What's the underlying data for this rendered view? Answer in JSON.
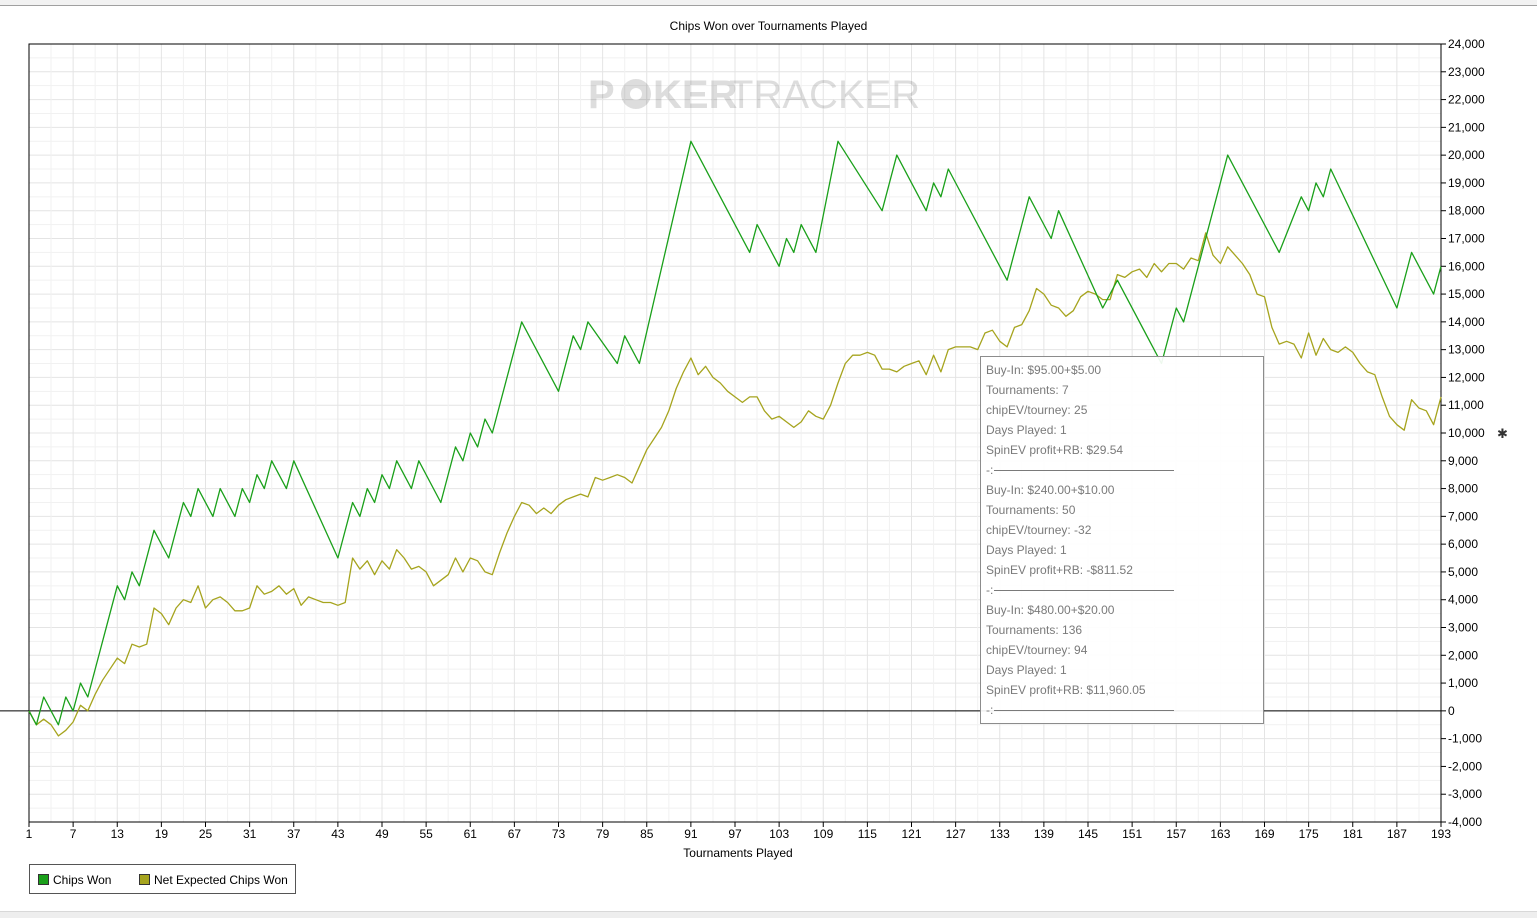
{
  "chart_data": {
    "type": "line",
    "title": "Chips Won over Tournaments Played",
    "xlabel": "Tournaments Played",
    "ylabel": "",
    "xlim": [
      1,
      193
    ],
    "ylim": [
      -4000,
      24000
    ],
    "y_axis_side": "right",
    "grid": true,
    "legend_position": "bottom-left",
    "x_ticks": [
      "1",
      "7",
      "13",
      "19",
      "25",
      "31",
      "37",
      "43",
      "49",
      "55",
      "61",
      "67",
      "73",
      "79",
      "85",
      "91",
      "97",
      "103",
      "109",
      "115",
      "121",
      "127",
      "133",
      "139",
      "145",
      "151",
      "157",
      "163",
      "169",
      "175",
      "181",
      "187",
      "193"
    ],
    "y_ticks": [
      "24,000",
      "23,000",
      "22,000",
      "21,000",
      "20,000",
      "19,000",
      "18,000",
      "17,000",
      "16,000",
      "15,000",
      "14,000",
      "13,000",
      "12,000",
      "11,000",
      "10,000",
      "9,000",
      "8,000",
      "7,000",
      "6,000",
      "5,000",
      "4,000",
      "3,000",
      "2,000",
      "1,000",
      "0",
      "-1,000",
      "-2,000",
      "-3,000",
      "-4,000"
    ],
    "series": [
      {
        "name": "Chips Won",
        "color": "#1aa01a",
        "points": [
          [
            1,
            0
          ],
          [
            2,
            -500
          ],
          [
            3,
            500
          ],
          [
            5,
            -500
          ],
          [
            6,
            500
          ],
          [
            7,
            0
          ],
          [
            8,
            1000
          ],
          [
            9,
            500
          ],
          [
            13,
            4500
          ],
          [
            14,
            4000
          ],
          [
            15,
            5000
          ],
          [
            16,
            4500
          ],
          [
            18,
            6500
          ],
          [
            20,
            5500
          ],
          [
            22,
            7500
          ],
          [
            23,
            7000
          ],
          [
            24,
            8000
          ],
          [
            26,
            7000
          ],
          [
            27,
            8000
          ],
          [
            29,
            7000
          ],
          [
            30,
            8000
          ],
          [
            31,
            7500
          ],
          [
            32,
            8500
          ],
          [
            33,
            8000
          ],
          [
            34,
            9000
          ],
          [
            36,
            8000
          ],
          [
            37,
            9000
          ],
          [
            43,
            5500
          ],
          [
            45,
            7500
          ],
          [
            46,
            7000
          ],
          [
            47,
            8000
          ],
          [
            48,
            7500
          ],
          [
            49,
            8500
          ],
          [
            50,
            8000
          ],
          [
            51,
            9000
          ],
          [
            53,
            8000
          ],
          [
            54,
            9000
          ],
          [
            57,
            7500
          ],
          [
            59,
            9500
          ],
          [
            60,
            9000
          ],
          [
            61,
            10000
          ],
          [
            62,
            9500
          ],
          [
            63,
            10500
          ],
          [
            64,
            10000
          ],
          [
            68,
            14000
          ],
          [
            73,
            11500
          ],
          [
            75,
            13500
          ],
          [
            76,
            13000
          ],
          [
            77,
            14000
          ],
          [
            81,
            12500
          ],
          [
            82,
            13500
          ],
          [
            84,
            12500
          ],
          [
            91,
            20500
          ],
          [
            99,
            16500
          ],
          [
            100,
            17500
          ],
          [
            103,
            16000
          ],
          [
            104,
            17000
          ],
          [
            105,
            16500
          ],
          [
            106,
            17500
          ],
          [
            108,
            16500
          ],
          [
            111,
            20500
          ],
          [
            117,
            18000
          ],
          [
            119,
            20000
          ],
          [
            123,
            18000
          ],
          [
            124,
            19000
          ],
          [
            125,
            18500
          ],
          [
            126,
            19500
          ],
          [
            134,
            15500
          ],
          [
            137,
            18500
          ],
          [
            140,
            17000
          ],
          [
            141,
            18000
          ],
          [
            147,
            14500
          ],
          [
            149,
            15500
          ],
          [
            155,
            12500
          ],
          [
            157,
            14500
          ],
          [
            158,
            14000
          ],
          [
            164,
            20000
          ],
          [
            171,
            16500
          ],
          [
            174,
            18500
          ],
          [
            175,
            18000
          ],
          [
            176,
            19000
          ],
          [
            177,
            18500
          ],
          [
            178,
            19500
          ],
          [
            187,
            14500
          ],
          [
            189,
            16500
          ],
          [
            192,
            15000
          ],
          [
            193,
            16000
          ]
        ]
      },
      {
        "name": "Net Expected Chips Won",
        "color": "#a6a41e",
        "points": [
          [
            1,
            0
          ],
          [
            2,
            -500
          ],
          [
            3,
            -300
          ],
          [
            4,
            -500
          ],
          [
            5,
            -900
          ],
          [
            6,
            -700
          ],
          [
            7,
            -400
          ],
          [
            8,
            200
          ],
          [
            9,
            0
          ],
          [
            10,
            600
          ],
          [
            11,
            1100
          ],
          [
            12,
            1500
          ],
          [
            13,
            1900
          ],
          [
            14,
            1700
          ],
          [
            15,
            2400
          ],
          [
            16,
            2300
          ],
          [
            17,
            2400
          ],
          [
            18,
            3700
          ],
          [
            19,
            3500
          ],
          [
            20,
            3100
          ],
          [
            21,
            3700
          ],
          [
            22,
            4000
          ],
          [
            23,
            3900
          ],
          [
            24,
            4500
          ],
          [
            25,
            3700
          ],
          [
            26,
            4000
          ],
          [
            27,
            4100
          ],
          [
            28,
            3900
          ],
          [
            29,
            3600
          ],
          [
            30,
            3600
          ],
          [
            31,
            3700
          ],
          [
            32,
            4500
          ],
          [
            33,
            4200
          ],
          [
            34,
            4300
          ],
          [
            35,
            4500
          ],
          [
            36,
            4200
          ],
          [
            37,
            4400
          ],
          [
            38,
            3800
          ],
          [
            39,
            4100
          ],
          [
            40,
            4000
          ],
          [
            41,
            3900
          ],
          [
            42,
            3900
          ],
          [
            43,
            3800
          ],
          [
            44,
            3900
          ],
          [
            45,
            5500
          ],
          [
            46,
            5100
          ],
          [
            47,
            5400
          ],
          [
            48,
            4900
          ],
          [
            49,
            5400
          ],
          [
            50,
            5100
          ],
          [
            51,
            5800
          ],
          [
            52,
            5500
          ],
          [
            53,
            5100
          ],
          [
            54,
            5200
          ],
          [
            55,
            5000
          ],
          [
            56,
            4500
          ],
          [
            57,
            4700
          ],
          [
            58,
            4900
          ],
          [
            59,
            5500
          ],
          [
            60,
            5000
          ],
          [
            61,
            5500
          ],
          [
            62,
            5400
          ],
          [
            63,
            5000
          ],
          [
            64,
            4900
          ],
          [
            65,
            5700
          ],
          [
            66,
            6400
          ],
          [
            67,
            7000
          ],
          [
            68,
            7500
          ],
          [
            69,
            7400
          ],
          [
            70,
            7100
          ],
          [
            71,
            7300
          ],
          [
            72,
            7100
          ],
          [
            73,
            7400
          ],
          [
            74,
            7600
          ],
          [
            75,
            7700
          ],
          [
            76,
            7800
          ],
          [
            77,
            7700
          ],
          [
            78,
            8400
          ],
          [
            79,
            8300
          ],
          [
            80,
            8400
          ],
          [
            81,
            8500
          ],
          [
            82,
            8400
          ],
          [
            83,
            8200
          ],
          [
            84,
            8800
          ],
          [
            85,
            9400
          ],
          [
            86,
            9800
          ],
          [
            87,
            10200
          ],
          [
            88,
            10800
          ],
          [
            89,
            11600
          ],
          [
            90,
            12200
          ],
          [
            91,
            12700
          ],
          [
            92,
            12100
          ],
          [
            93,
            12400
          ],
          [
            94,
            12000
          ],
          [
            95,
            11800
          ],
          [
            96,
            11500
          ],
          [
            97,
            11300
          ],
          [
            98,
            11100
          ],
          [
            99,
            11300
          ],
          [
            100,
            11300
          ],
          [
            101,
            10800
          ],
          [
            102,
            10500
          ],
          [
            103,
            10600
          ],
          [
            104,
            10400
          ],
          [
            105,
            10200
          ],
          [
            106,
            10400
          ],
          [
            107,
            10800
          ],
          [
            108,
            10600
          ],
          [
            109,
            10500
          ],
          [
            110,
            11000
          ],
          [
            111,
            11800
          ],
          [
            112,
            12500
          ],
          [
            113,
            12800
          ],
          [
            114,
            12800
          ],
          [
            115,
            12900
          ],
          [
            116,
            12800
          ],
          [
            117,
            12300
          ],
          [
            118,
            12300
          ],
          [
            119,
            12200
          ],
          [
            120,
            12400
          ],
          [
            121,
            12500
          ],
          [
            122,
            12600
          ],
          [
            123,
            12100
          ],
          [
            124,
            12800
          ],
          [
            125,
            12200
          ],
          [
            126,
            13000
          ],
          [
            127,
            13100
          ],
          [
            128,
            13100
          ],
          [
            129,
            13100
          ],
          [
            130,
            13000
          ],
          [
            131,
            13600
          ],
          [
            132,
            13700
          ],
          [
            133,
            13300
          ],
          [
            134,
            13100
          ],
          [
            135,
            13800
          ],
          [
            136,
            13900
          ],
          [
            137,
            14400
          ],
          [
            138,
            15200
          ],
          [
            139,
            15000
          ],
          [
            140,
            14600
          ],
          [
            141,
            14500
          ],
          [
            142,
            14200
          ],
          [
            143,
            14400
          ],
          [
            144,
            14900
          ],
          [
            145,
            15100
          ],
          [
            146,
            15000
          ],
          [
            147,
            14800
          ],
          [
            148,
            14800
          ],
          [
            149,
            15700
          ],
          [
            150,
            15600
          ],
          [
            151,
            15800
          ],
          [
            152,
            15900
          ],
          [
            153,
            15600
          ],
          [
            154,
            16100
          ],
          [
            155,
            15800
          ],
          [
            156,
            16100
          ],
          [
            157,
            16100
          ],
          [
            158,
            15900
          ],
          [
            159,
            16300
          ],
          [
            160,
            16200
          ],
          [
            161,
            17200
          ],
          [
            162,
            16400
          ],
          [
            163,
            16100
          ],
          [
            164,
            16700
          ],
          [
            165,
            16400
          ],
          [
            166,
            16100
          ],
          [
            167,
            15700
          ],
          [
            168,
            15000
          ],
          [
            169,
            14900
          ],
          [
            170,
            13800
          ],
          [
            171,
            13200
          ],
          [
            172,
            13300
          ],
          [
            173,
            13200
          ],
          [
            174,
            12700
          ],
          [
            175,
            13600
          ],
          [
            176,
            12800
          ],
          [
            177,
            13400
          ],
          [
            178,
            13000
          ],
          [
            179,
            12900
          ],
          [
            180,
            13100
          ],
          [
            181,
            12900
          ],
          [
            182,
            12500
          ],
          [
            183,
            12200
          ],
          [
            184,
            12100
          ],
          [
            185,
            11300
          ],
          [
            186,
            10600
          ],
          [
            187,
            10300
          ],
          [
            188,
            10100
          ],
          [
            189,
            11200
          ],
          [
            190,
            10900
          ],
          [
            191,
            10800
          ],
          [
            192,
            10300
          ],
          [
            193,
            11300
          ]
        ]
      }
    ]
  },
  "watermark": {
    "part1": "P",
    "part2": "KER",
    "part3": "TRACKER"
  },
  "tooltip": {
    "groups": [
      {
        "buyin": "Buy-In: $95.00+$5.00",
        "tournaments": "Tournaments: 7",
        "chipev": "chipEV/tourney: 25",
        "days": "Days Played: 1",
        "profit": "SpinEV profit+RB: $29.54"
      },
      {
        "buyin": "Buy-In: $240.00+$10.00",
        "tournaments": "Tournaments: 50",
        "chipev": "chipEV/tourney: -32",
        "days": "Days Played: 1",
        "profit": "SpinEV profit+RB: -$811.52"
      },
      {
        "buyin": "Buy-In: $480.00+$20.00",
        "tournaments": "Tournaments: 136",
        "chipev": "chipEV/tourney: 94",
        "days": "Days Played: 1",
        "profit": "SpinEV profit+RB: $11,960.05"
      }
    ],
    "separator": "-:"
  },
  "legend": {
    "items": [
      {
        "label": "Chips Won",
        "color": "#1aa01a"
      },
      {
        "label": "Net Expected Chips Won",
        "color": "#a6a41e"
      }
    ]
  },
  "resize_icon": "crosshair-icon"
}
